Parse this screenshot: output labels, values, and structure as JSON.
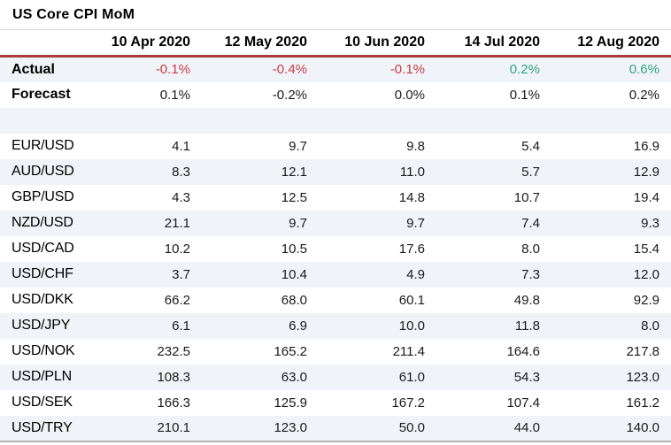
{
  "title": "US Core CPI MoM",
  "colors": {
    "negative_value": "#cb3c45",
    "positive_value": "#2fa57d",
    "header_rule": "#a83d3f",
    "alt_row_bg": "#f0f3f7",
    "bottom_rule": "#b3b3b3"
  },
  "chart_data": {
    "type": "table",
    "title": "US Core CPI MoM",
    "columns": [
      "10 Apr 2020",
      "12 May 2020",
      "10 Jun 2020",
      "14 Jul 2020",
      "12 Aug 2020"
    ],
    "summary_rows": [
      {
        "label": "Actual",
        "values": [
          "-0.1%",
          "-0.4%",
          "-0.1%",
          "0.2%",
          "0.6%"
        ],
        "tones": [
          "negative",
          "negative",
          "negative",
          "positive",
          "positive"
        ]
      },
      {
        "label": "Forecast",
        "values": [
          "0.1%",
          "-0.2%",
          "0.0%",
          "0.1%",
          "0.2%"
        ],
        "tones": [
          "neutral",
          "neutral",
          "neutral",
          "neutral",
          "neutral"
        ]
      }
    ],
    "pair_rows": [
      {
        "label": "EUR/USD",
        "values": [
          "4.1",
          "9.7",
          "9.8",
          "5.4",
          "16.9"
        ]
      },
      {
        "label": "AUD/USD",
        "values": [
          "8.3",
          "12.1",
          "11.0",
          "5.7",
          "12.9"
        ]
      },
      {
        "label": "GBP/USD",
        "values": [
          "4.3",
          "12.5",
          "14.8",
          "10.7",
          "19.4"
        ]
      },
      {
        "label": "NZD/USD",
        "values": [
          "21.1",
          "9.7",
          "9.7",
          "7.4",
          "9.3"
        ]
      },
      {
        "label": "USD/CAD",
        "values": [
          "10.2",
          "10.5",
          "17.6",
          "8.0",
          "15.4"
        ]
      },
      {
        "label": "USD/CHF",
        "values": [
          "3.7",
          "10.4",
          "4.9",
          "7.3",
          "12.0"
        ]
      },
      {
        "label": "USD/DKK",
        "values": [
          "66.2",
          "68.0",
          "60.1",
          "49.8",
          "92.9"
        ]
      },
      {
        "label": "USD/JPY",
        "values": [
          "6.1",
          "6.9",
          "10.0",
          "11.8",
          "8.0"
        ]
      },
      {
        "label": "USD/NOK",
        "values": [
          "232.5",
          "165.2",
          "211.4",
          "164.6",
          "217.8"
        ]
      },
      {
        "label": "USD/PLN",
        "values": [
          "108.3",
          "63.0",
          "61.0",
          "54.3",
          "123.0"
        ]
      },
      {
        "label": "USD/SEK",
        "values": [
          "166.3",
          "125.9",
          "167.2",
          "107.4",
          "161.2"
        ]
      },
      {
        "label": "USD/TRY",
        "values": [
          "210.1",
          "123.0",
          "50.0",
          "44.0",
          "140.0"
        ]
      }
    ]
  }
}
